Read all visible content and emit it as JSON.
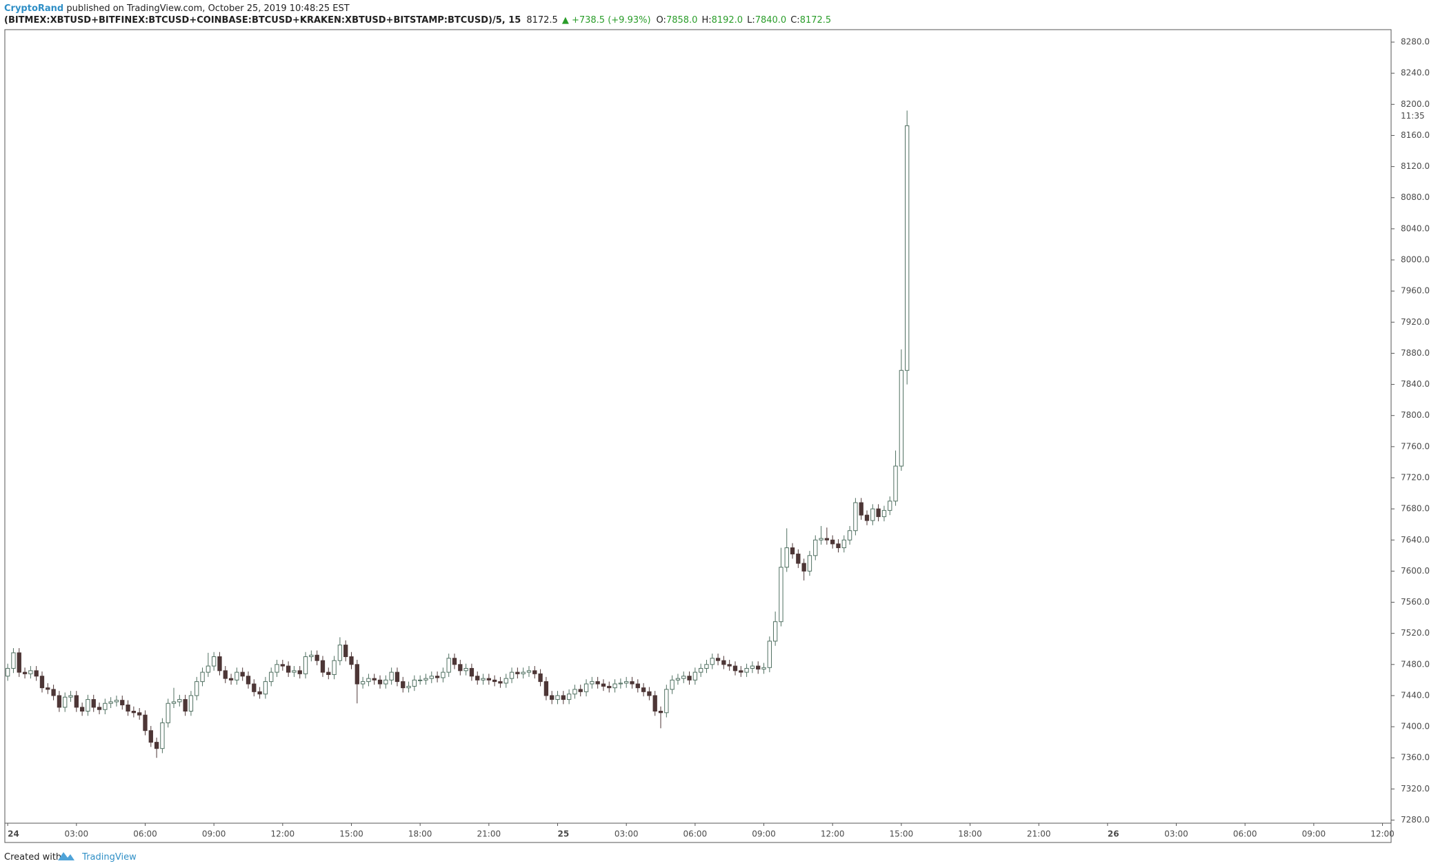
{
  "chart_data": {
    "type": "candlestick",
    "author": "CryptoRand",
    "published": " published on TradingView.com, October 25, 2019 10:48:25 EST",
    "title": "(BITMEX:XBTUSD+BITFINEX:BTCUSD+COINBASE:BTCUSD+KRAKEN:XBTUSD+BITSTAMP:BTCUSD)/5, 15",
    "last": "8172.5",
    "change": "▲ +738.5 (+9.93%)",
    "ohlc_labels": [
      "O:",
      "H:",
      "L:",
      "C:"
    ],
    "ohlc_values": [
      "7858.0",
      "8192.0",
      "7840.0",
      "8172.5"
    ],
    "countdown": "11:35",
    "footer": "Created with",
    "brand": "TradingView",
    "up_color": "#ffffff",
    "up_border": "#4f6f60",
    "down_color": "#4d3636",
    "open": [
      7465,
      7475,
      7495,
      7470,
      7468,
      7472,
      7465,
      7450,
      7448,
      7440,
      7425,
      7438,
      7440,
      7425,
      7420,
      7435,
      7425,
      7422,
      7430,
      7432,
      7434,
      7428,
      7420,
      7418,
      7415,
      7395,
      7380,
      7372,
      7405,
      7430,
      7432,
      7435,
      7420,
      7440,
      7458,
      7470,
      7478,
      7490,
      7472,
      7462,
      7460,
      7470,
      7465,
      7455,
      7445,
      7442,
      7458,
      7470,
      7480,
      7478,
      7470,
      7472,
      7468,
      7490,
      7492,
      7485,
      7470,
      7467,
      7485,
      7505,
      7490,
      7480,
      7455,
      7458,
      7462,
      7460,
      7455,
      7460,
      7470,
      7458,
      7450,
      7452,
      7460,
      7460,
      7462,
      7465,
      7463,
      7470,
      7488,
      7480,
      7472,
      7475,
      7465,
      7460,
      7462,
      7460,
      7458,
      7456,
      7462,
      7470,
      7468,
      7470,
      7472,
      7468,
      7458,
      7440,
      7435,
      7440,
      7435,
      7442,
      7448,
      7445,
      7455,
      7458,
      7455,
      7452,
      7450,
      7455,
      7456,
      7458,
      7455,
      7450,
      7445,
      7440,
      7420,
      7418,
      7448,
      7460,
      7462,
      7465,
      7460,
      7470,
      7475,
      7480,
      7488,
      7485,
      7480,
      7478,
      7472,
      7470,
      7475,
      7478,
      7474,
      7476,
      7510,
      7535,
      7605,
      7630,
      7622,
      7610,
      7600,
      7620,
      7640,
      7642,
      7640,
      7635,
      7630,
      7640,
      7652,
      7688,
      7672,
      7665,
      7680,
      7670,
      7678,
      7690,
      7735,
      7858
    ],
    "high": [
      7481,
      7501,
      7501,
      7476,
      7478,
      7478,
      7471,
      7456,
      7454,
      7446,
      7444,
      7446,
      7446,
      7431,
      7441,
      7441,
      7431,
      7436,
      7438,
      7440,
      7440,
      7434,
      7426,
      7424,
      7421,
      7401,
      7386,
      7411,
      7436,
      7450,
      7441,
      7441,
      7446,
      7464,
      7476,
      7495,
      7496,
      7496,
      7478,
      7468,
      7476,
      7476,
      7471,
      7461,
      7451,
      7464,
      7476,
      7486,
      7486,
      7484,
      7478,
      7478,
      7496,
      7498,
      7498,
      7491,
      7476,
      7491,
      7515,
      7511,
      7496,
      7486,
      7464,
      7468,
      7468,
      7466,
      7466,
      7476,
      7476,
      7464,
      7458,
      7466,
      7466,
      7468,
      7471,
      7471,
      7476,
      7494,
      7494,
      7486,
      7481,
      7481,
      7471,
      7468,
      7468,
      7466,
      7464,
      7468,
      7476,
      7476,
      7476,
      7478,
      7478,
      7474,
      7464,
      7446,
      7446,
      7446,
      7448,
      7454,
      7454,
      7461,
      7464,
      7464,
      7461,
      7458,
      7461,
      7462,
      7464,
      7464,
      7461,
      7456,
      7451,
      7446,
      7426,
      7454,
      7466,
      7468,
      7471,
      7471,
      7476,
      7481,
      7486,
      7494,
      7494,
      7491,
      7486,
      7484,
      7478,
      7481,
      7484,
      7484,
      7482,
      7516,
      7548,
      7630,
      7655,
      7636,
      7628,
      7616,
      7626,
      7646,
      7658,
      7656,
      7646,
      7641,
      7646,
      7658,
      7694,
      7694,
      7678,
      7686,
      7686,
      7684,
      7696,
      7755,
      7885,
      8192
    ],
    "low": [
      7459,
      7469,
      7464,
      7462,
      7462,
      7459,
      7444,
      7442,
      7434,
      7419,
      7419,
      7432,
      7419,
      7414,
      7414,
      7419,
      7416,
      7416,
      7424,
      7426,
      7422,
      7414,
      7412,
      7409,
      7389,
      7374,
      7360,
      7366,
      7399,
      7424,
      7426,
      7414,
      7414,
      7434,
      7452,
      7464,
      7472,
      7466,
      7456,
      7454,
      7454,
      7459,
      7449,
      7439,
      7436,
      7436,
      7452,
      7464,
      7472,
      7464,
      7464,
      7462,
      7462,
      7484,
      7479,
      7464,
      7461,
      7461,
      7479,
      7484,
      7474,
      7430,
      7449,
      7452,
      7454,
      7449,
      7449,
      7454,
      7452,
      7444,
      7444,
      7446,
      7454,
      7454,
      7456,
      7457,
      7457,
      7464,
      7474,
      7466,
      7466,
      7459,
      7454,
      7454,
      7454,
      7452,
      7450,
      7450,
      7456,
      7462,
      7462,
      7464,
      7462,
      7452,
      7434,
      7429,
      7429,
      7429,
      7429,
      7436,
      7439,
      7439,
      7449,
      7449,
      7446,
      7444,
      7444,
      7449,
      7450,
      7449,
      7444,
      7439,
      7434,
      7414,
      7398,
      7412,
      7442,
      7454,
      7456,
      7454,
      7454,
      7464,
      7469,
      7474,
      7479,
      7474,
      7472,
      7466,
      7464,
      7464,
      7469,
      7468,
      7468,
      7470,
      7504,
      7529,
      7599,
      7616,
      7604,
      7588,
      7594,
      7614,
      7634,
      7634,
      7629,
      7624,
      7624,
      7634,
      7646,
      7666,
      7659,
      7659,
      7664,
      7664,
      7672,
      7684,
      7729,
      7840
    ],
    "close": [
      7475,
      7495,
      7470,
      7468,
      7472,
      7465,
      7450,
      7448,
      7440,
      7425,
      7438,
      7440,
      7425,
      7420,
      7435,
      7425,
      7422,
      7430,
      7432,
      7434,
      7428,
      7420,
      7418,
      7415,
      7395,
      7380,
      7372,
      7405,
      7430,
      7432,
      7435,
      7420,
      7440,
      7458,
      7470,
      7478,
      7490,
      7472,
      7462,
      7460,
      7470,
      7465,
      7455,
      7445,
      7442,
      7458,
      7470,
      7480,
      7478,
      7470,
      7472,
      7468,
      7490,
      7492,
      7485,
      7470,
      7467,
      7485,
      7505,
      7490,
      7480,
      7455,
      7458,
      7462,
      7460,
      7455,
      7460,
      7470,
      7458,
      7450,
      7452,
      7460,
      7460,
      7462,
      7465,
      7463,
      7470,
      7488,
      7480,
      7472,
      7475,
      7465,
      7460,
      7462,
      7460,
      7458,
      7456,
      7462,
      7470,
      7468,
      7470,
      7472,
      7468,
      7458,
      7440,
      7435,
      7440,
      7435,
      7442,
      7448,
      7445,
      7455,
      7458,
      7455,
      7452,
      7450,
      7455,
      7456,
      7458,
      7455,
      7450,
      7445,
      7440,
      7420,
      7418,
      7448,
      7460,
      7462,
      7465,
      7460,
      7470,
      7475,
      7480,
      7488,
      7485,
      7480,
      7478,
      7472,
      7470,
      7475,
      7478,
      7474,
      7476,
      7510,
      7535,
      7605,
      7630,
      7622,
      7610,
      7600,
      7620,
      7640,
      7642,
      7640,
      7635,
      7630,
      7640,
      7652,
      7688,
      7672,
      7665,
      7680,
      7670,
      7678,
      7690,
      7735,
      7858,
      8172.5
    ],
    "xlim": [
      -0.5,
      241.5
    ],
    "xticks": [
      {
        "value": 0,
        "label": "24"
      },
      {
        "value": 12,
        "label": "03:00"
      },
      {
        "value": 24,
        "label": "06:00"
      },
      {
        "value": 36,
        "label": "09:00"
      },
      {
        "value": 48,
        "label": "12:00"
      },
      {
        "value": 60,
        "label": "15:00"
      },
      {
        "value": 72,
        "label": "18:00"
      },
      {
        "value": 84,
        "label": "21:00"
      },
      {
        "value": 96,
        "label": "25"
      },
      {
        "value": 108,
        "label": "03:00"
      },
      {
        "value": 120,
        "label": "06:00"
      },
      {
        "value": 132,
        "label": "09:00"
      },
      {
        "value": 144,
        "label": "12:00"
      },
      {
        "value": 156,
        "label": "15:00"
      },
      {
        "value": 168,
        "label": "18:00"
      },
      {
        "value": 180,
        "label": "21:00"
      },
      {
        "value": 192,
        "label": "26"
      },
      {
        "value": 204,
        "label": "03:00"
      },
      {
        "value": 216,
        "label": "06:00"
      },
      {
        "value": 228,
        "label": "09:00"
      },
      {
        "value": 240,
        "label": "12:00"
      }
    ],
    "ylim": [
      7276,
      8296
    ],
    "yticks": [
      {
        "value": 7280,
        "label": "7280.0"
      },
      {
        "value": 7320,
        "label": "7320.0"
      },
      {
        "value": 7360,
        "label": "7360.0"
      },
      {
        "value": 7400,
        "label": "7400.0"
      },
      {
        "value": 7440,
        "label": "7440.0"
      },
      {
        "value": 7480,
        "label": "7480.0"
      },
      {
        "value": 7520,
        "label": "7520.0"
      },
      {
        "value": 7560,
        "label": "7560.0"
      },
      {
        "value": 7600,
        "label": "7600.0"
      },
      {
        "value": 7640,
        "label": "7640.0"
      },
      {
        "value": 7680,
        "label": "7680.0"
      },
      {
        "value": 7720,
        "label": "7720.0"
      },
      {
        "value": 7760,
        "label": "7760.0"
      },
      {
        "value": 7800,
        "label": "7800.0"
      },
      {
        "value": 7840,
        "label": "7840.0"
      },
      {
        "value": 7880,
        "label": "7880.0"
      },
      {
        "value": 7920,
        "label": "7920.0"
      },
      {
        "value": 7960,
        "label": "7960.0"
      },
      {
        "value": 8000,
        "label": "8000.0"
      },
      {
        "value": 8040,
        "label": "8040.0"
      },
      {
        "value": 8080,
        "label": "8080.0"
      },
      {
        "value": 8120,
        "label": "8120.0"
      },
      {
        "value": 8160,
        "label": "8160.0"
      },
      {
        "value": 8200,
        "label": "8200.0"
      },
      {
        "value": 8240,
        "label": "8240.0"
      },
      {
        "value": 8280,
        "label": "8280.0"
      }
    ],
    "grid": false
  }
}
